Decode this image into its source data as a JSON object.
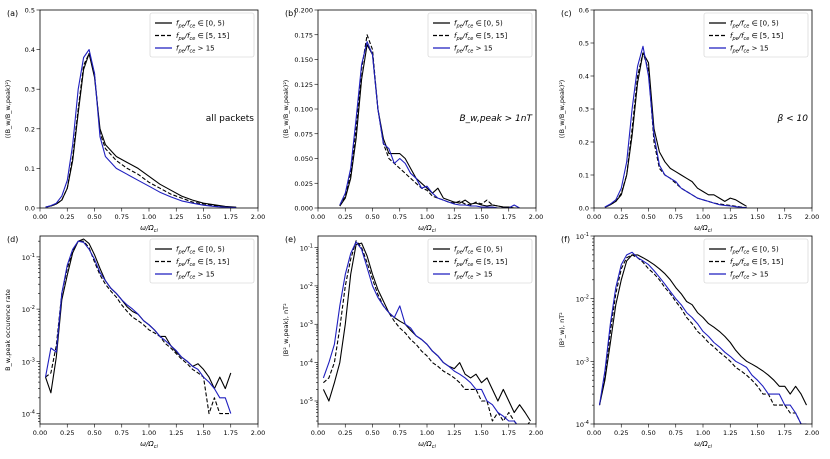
{
  "figure": {
    "xlabel": "ω/Ω",
    "xlabel_sub": "ci",
    "legend_entries": [
      {
        "main": "f",
        "sub": "pe",
        "mid": "/f",
        "sub2": "ce",
        "tail": " ∈ [0, 5)",
        "color": "#000000",
        "dash": "solid"
      },
      {
        "main": "f",
        "sub": "pe",
        "mid": "/f",
        "sub2": "ce",
        "tail": " ∈ [5, 15]",
        "color": "#000000",
        "dash": "dashed"
      },
      {
        "main": "f",
        "sub": "pe",
        "mid": "/f",
        "sub2": "ce",
        "tail": " > 15",
        "color": "#1f1fbf",
        "dash": "solid"
      }
    ]
  },
  "chart_data": [
    {
      "panel": "(a)",
      "type": "line",
      "scale": "linear",
      "ylabel": "⟨(B_w/B_w,peak)²⟩",
      "annotation": "all packets",
      "xlim": [
        0,
        2
      ],
      "ylim": [
        0,
        0.5
      ],
      "yticks": [
        "0.0",
        "0.1",
        "0.2",
        "0.3",
        "0.4",
        "0.5"
      ],
      "xticks": [
        "0.00",
        "0.25",
        "0.50",
        "0.75",
        "1.00",
        "1.25",
        "1.50",
        "1.75",
        "2.00"
      ],
      "x": [
        0.05,
        0.1,
        0.15,
        0.2,
        0.25,
        0.3,
        0.35,
        0.4,
        0.45,
        0.5,
        0.55,
        0.6,
        0.7,
        0.8,
        0.9,
        1.0,
        1.1,
        1.2,
        1.3,
        1.4,
        1.5,
        1.6,
        1.7,
        1.8
      ],
      "series": [
        {
          "values": [
            0.002,
            0.005,
            0.01,
            0.02,
            0.05,
            0.12,
            0.24,
            0.35,
            0.39,
            0.33,
            0.2,
            0.16,
            0.13,
            0.115,
            0.1,
            0.08,
            0.06,
            0.045,
            0.03,
            0.02,
            0.012,
            0.008,
            0.004,
            0.002
          ]
        },
        {
          "values": [
            0.002,
            0.005,
            0.01,
            0.02,
            0.05,
            0.13,
            0.25,
            0.36,
            0.39,
            0.34,
            0.19,
            0.15,
            0.12,
            0.1,
            0.085,
            0.065,
            0.05,
            0.035,
            0.025,
            0.015,
            0.01,
            0.006,
            0.003,
            0.001
          ]
        },
        {
          "values": [
            0.002,
            0.006,
            0.012,
            0.03,
            0.07,
            0.16,
            0.3,
            0.38,
            0.4,
            0.34,
            0.18,
            0.13,
            0.1,
            0.085,
            0.07,
            0.055,
            0.04,
            0.028,
            0.018,
            0.012,
            0.007,
            0.004,
            0.002,
            0.001
          ]
        }
      ]
    },
    {
      "panel": "(b)",
      "type": "line",
      "scale": "linear",
      "ylabel": "⟨(B_w/B_w,peak)²⟩",
      "annotation": "B_w,peak > 1nT",
      "xlim": [
        0,
        2
      ],
      "ylim": [
        0,
        0.2
      ],
      "yticks": [
        "0.000",
        "0.025",
        "0.050",
        "0.075",
        "0.100",
        "0.125",
        "0.150",
        "0.175",
        "0.200"
      ],
      "xticks": [
        "0.00",
        "0.25",
        "0.50",
        "0.75",
        "1.00",
        "1.25",
        "1.50",
        "1.75",
        "2.00"
      ],
      "x": [
        0.2,
        0.25,
        0.3,
        0.35,
        0.4,
        0.45,
        0.5,
        0.55,
        0.6,
        0.65,
        0.7,
        0.75,
        0.8,
        0.85,
        0.9,
        0.95,
        1.0,
        1.05,
        1.1,
        1.15,
        1.2,
        1.25,
        1.3,
        1.35,
        1.4,
        1.45,
        1.5,
        1.55,
        1.6,
        1.65,
        1.7,
        1.75,
        1.8,
        1.85
      ],
      "series": [
        {
          "values": [
            0.002,
            0.01,
            0.03,
            0.07,
            0.13,
            0.165,
            0.155,
            0.1,
            0.07,
            0.055,
            0.055,
            0.055,
            0.05,
            0.04,
            0.03,
            0.025,
            0.02,
            0.015,
            0.02,
            0.01,
            0.008,
            0.006,
            0.005,
            0.008,
            0.004,
            0.005,
            0.003,
            0.002,
            0.003,
            0.002,
            0.001,
            0.001,
            0.0,
            0.0
          ]
        },
        {
          "values": [
            0.002,
            0.012,
            0.035,
            0.08,
            0.14,
            0.175,
            0.16,
            0.1,
            0.065,
            0.05,
            0.045,
            0.04,
            0.035,
            0.03,
            0.025,
            0.02,
            0.018,
            0.012,
            0.01,
            0.008,
            0.006,
            0.005,
            0.007,
            0.004,
            0.003,
            0.006,
            0.004,
            0.008,
            0.003,
            0.002,
            0.001,
            0.0,
            0.0,
            0.0
          ]
        },
        {
          "values": [
            0.003,
            0.015,
            0.04,
            0.09,
            0.145,
            0.168,
            0.155,
            0.1,
            0.065,
            0.06,
            0.045,
            0.05,
            0.045,
            0.035,
            0.03,
            0.02,
            0.022,
            0.015,
            0.01,
            0.008,
            0.006,
            0.004,
            0.003,
            0.003,
            0.002,
            0.002,
            0.001,
            0.001,
            0.001,
            0.0,
            0.0,
            0.0,
            0.003,
            0.0
          ]
        }
      ]
    },
    {
      "panel": "(c)",
      "type": "line",
      "scale": "linear",
      "ylabel": "⟨(B_w/B_w,peak)²⟩",
      "annotation": "β < 10",
      "xlim": [
        0,
        2
      ],
      "ylim": [
        0,
        0.6
      ],
      "yticks": [
        "0.0",
        "0.1",
        "0.2",
        "0.3",
        "0.4",
        "0.5",
        "0.6"
      ],
      "xticks": [
        "0.00",
        "0.25",
        "0.50",
        "0.75",
        "1.00",
        "1.25",
        "1.50",
        "1.75",
        "2.00"
      ],
      "x": [
        0.1,
        0.15,
        0.2,
        0.25,
        0.3,
        0.35,
        0.4,
        0.45,
        0.5,
        0.55,
        0.6,
        0.65,
        0.7,
        0.75,
        0.8,
        0.85,
        0.9,
        0.95,
        1.0,
        1.05,
        1.1,
        1.15,
        1.2,
        1.25,
        1.3,
        1.35,
        1.4
      ],
      "series": [
        {
          "values": [
            0.002,
            0.01,
            0.02,
            0.04,
            0.1,
            0.22,
            0.38,
            0.47,
            0.44,
            0.24,
            0.17,
            0.14,
            0.12,
            0.11,
            0.1,
            0.09,
            0.08,
            0.06,
            0.05,
            0.04,
            0.04,
            0.03,
            0.02,
            0.03,
            0.025,
            0.015,
            0.005
          ]
        },
        {
          "values": [
            0.002,
            0.01,
            0.02,
            0.045,
            0.1,
            0.24,
            0.4,
            0.47,
            0.42,
            0.2,
            0.12,
            0.1,
            0.09,
            0.075,
            0.06,
            0.05,
            0.04,
            0.03,
            0.025,
            0.02,
            0.015,
            0.012,
            0.01,
            0.008,
            0.005,
            0.003,
            0.001
          ]
        },
        {
          "values": [
            0.003,
            0.012,
            0.025,
            0.06,
            0.14,
            0.3,
            0.43,
            0.49,
            0.4,
            0.22,
            0.13,
            0.1,
            0.09,
            0.08,
            0.06,
            0.05,
            0.04,
            0.03,
            0.025,
            0.02,
            0.015,
            0.01,
            0.008,
            0.006,
            0.004,
            0.002,
            0.001
          ]
        }
      ]
    },
    {
      "panel": "(d)",
      "type": "line",
      "scale": "log",
      "ylabel": "B_w,peak occurence rate",
      "annotation": "",
      "xlim": [
        0,
        2
      ],
      "ylim_exp": [
        -4.2,
        -0.6
      ],
      "yticks_exp": [
        -4,
        -3,
        -2,
        -1
      ],
      "xticks": [
        "0.00",
        "0.25",
        "0.50",
        "0.75",
        "1.00",
        "1.25",
        "1.50",
        "1.75",
        "2.00"
      ],
      "x": [
        0.05,
        0.1,
        0.15,
        0.2,
        0.25,
        0.3,
        0.35,
        0.4,
        0.45,
        0.5,
        0.55,
        0.6,
        0.65,
        0.7,
        0.75,
        0.8,
        0.85,
        0.9,
        0.95,
        1.0,
        1.05,
        1.1,
        1.15,
        1.2,
        1.25,
        1.3,
        1.35,
        1.4,
        1.45,
        1.5,
        1.55,
        1.6,
        1.65,
        1.7,
        1.75
      ],
      "series": [
        {
          "values": [
            0.0005,
            0.00025,
            0.0012,
            0.015,
            0.045,
            0.12,
            0.2,
            0.22,
            0.18,
            0.11,
            0.06,
            0.035,
            0.025,
            0.02,
            0.015,
            0.011,
            0.009,
            0.008,
            0.006,
            0.005,
            0.004,
            0.003,
            0.003,
            0.002,
            0.0015,
            0.0012,
            0.001,
            0.0008,
            0.0009,
            0.0007,
            0.0005,
            0.0003,
            0.0005,
            0.0003,
            0.0006
          ]
        },
        {
          "values": [
            0.0005,
            0.0006,
            0.002,
            0.02,
            0.06,
            0.13,
            0.2,
            0.2,
            0.15,
            0.08,
            0.045,
            0.03,
            0.022,
            0.017,
            0.012,
            0.009,
            0.007,
            0.006,
            0.005,
            0.004,
            0.0035,
            0.003,
            0.0022,
            0.0018,
            0.0014,
            0.0011,
            0.0009,
            0.0007,
            0.0006,
            0.0005,
            0.0001,
            0.0002,
            0.0001,
            0.0001,
            0.0001
          ]
        },
        {
          "values": [
            0.0005,
            0.0018,
            0.0015,
            0.02,
            0.07,
            0.14,
            0.2,
            0.19,
            0.14,
            0.09,
            0.05,
            0.035,
            0.025,
            0.02,
            0.015,
            0.012,
            0.01,
            0.008,
            0.006,
            0.005,
            0.004,
            0.003,
            0.0025,
            0.002,
            0.0016,
            0.0012,
            0.001,
            0.0008,
            0.0007,
            0.0005,
            0.0004,
            0.0003,
            0.0002,
            0.0002,
            0.0001
          ]
        }
      ]
    },
    {
      "panel": "(e)",
      "type": "line",
      "scale": "log",
      "ylabel": "⟨B²_w,peak⟩, nT²",
      "annotation": "",
      "xlim": [
        0,
        2
      ],
      "ylim_exp": [
        -5.6,
        -0.7
      ],
      "yticks_exp": [
        -5,
        -4,
        -3,
        -2,
        -1
      ],
      "xticks": [
        "0.00",
        "0.25",
        "0.50",
        "0.75",
        "1.00",
        "1.25",
        "1.50",
        "1.75",
        "2.00"
      ],
      "x": [
        0.05,
        0.1,
        0.15,
        0.2,
        0.25,
        0.3,
        0.35,
        0.4,
        0.45,
        0.5,
        0.55,
        0.6,
        0.65,
        0.7,
        0.75,
        0.8,
        0.85,
        0.9,
        0.95,
        1.0,
        1.05,
        1.1,
        1.15,
        1.2,
        1.25,
        1.3,
        1.35,
        1.4,
        1.45,
        1.5,
        1.55,
        1.6,
        1.65,
        1.7,
        1.75,
        1.8,
        1.85,
        1.9,
        1.95
      ],
      "series": [
        {
          "values": [
            2e-05,
            1e-05,
            3e-05,
            0.0001,
            0.001,
            0.02,
            0.12,
            0.13,
            0.06,
            0.02,
            0.008,
            0.004,
            0.002,
            0.0015,
            0.0012,
            0.001,
            0.0007,
            0.0005,
            0.0004,
            0.0003,
            0.0002,
            0.00015,
            0.0001,
            8e-05,
            7e-05,
            0.0001,
            5e-05,
            4e-05,
            5e-05,
            3e-05,
            4e-05,
            2e-05,
            1e-05,
            2e-05,
            1e-05,
            5e-06,
            8e-06,
            5e-06,
            3e-06
          ]
        },
        {
          "values": [
            3e-05,
            4e-05,
            0.0001,
            0.0008,
            0.01,
            0.05,
            0.15,
            0.1,
            0.04,
            0.015,
            0.006,
            0.003,
            0.002,
            0.0012,
            0.0008,
            0.0006,
            0.0004,
            0.0003,
            0.0002,
            0.00015,
            0.0001,
            8e-05,
            6e-05,
            5e-05,
            4e-05,
            3e-05,
            2e-05,
            2e-05,
            2e-05,
            1e-05,
            1e-05,
            3e-06,
            5e-06,
            3e-06,
            5e-06,
            3e-06,
            2e-06,
            2e-06,
            3e-06
          ]
        },
        {
          "values": [
            4e-05,
            0.0001,
            0.0003,
            0.003,
            0.02,
            0.07,
            0.14,
            0.09,
            0.03,
            0.01,
            0.005,
            0.003,
            0.002,
            0.0015,
            0.003,
            0.001,
            0.0008,
            0.0005,
            0.0004,
            0.0003,
            0.0002,
            0.00015,
            0.0001,
            8e-05,
            6e-05,
            5e-05,
            4e-05,
            3e-05,
            2e-05,
            2e-05,
            1e-05,
            8e-06,
            5e-06,
            4e-06,
            3e-06,
            3e-06,
            2e-06,
            2e-06,
            2e-06
          ]
        }
      ]
    },
    {
      "panel": "(f)",
      "type": "line",
      "scale": "log",
      "ylabel": "⟨B²_w⟩, nT²",
      "annotation": "",
      "xlim": [
        0,
        2
      ],
      "ylim_exp": [
        -4,
        -1
      ],
      "yticks_exp": [
        -4,
        -3,
        -2,
        -1
      ],
      "xticks": [
        "0.00",
        "0.25",
        "0.50",
        "0.75",
        "1.00",
        "1.25",
        "1.50",
        "1.75",
        "2.00"
      ],
      "x": [
        0.05,
        0.1,
        0.15,
        0.2,
        0.25,
        0.3,
        0.35,
        0.4,
        0.45,
        0.5,
        0.55,
        0.6,
        0.65,
        0.7,
        0.75,
        0.8,
        0.85,
        0.9,
        0.95,
        1.0,
        1.05,
        1.1,
        1.15,
        1.2,
        1.25,
        1.3,
        1.35,
        1.4,
        1.45,
        1.5,
        1.55,
        1.6,
        1.65,
        1.7,
        1.75,
        1.8,
        1.85,
        1.9,
        1.95
      ],
      "series": [
        {
          "values": [
            0.0002,
            0.0005,
            0.002,
            0.008,
            0.02,
            0.04,
            0.05,
            0.05,
            0.045,
            0.04,
            0.035,
            0.03,
            0.025,
            0.02,
            0.015,
            0.012,
            0.009,
            0.008,
            0.006,
            0.005,
            0.004,
            0.0035,
            0.003,
            0.0025,
            0.002,
            0.0015,
            0.0012,
            0.001,
            0.0009,
            0.0008,
            0.0007,
            0.0006,
            0.0005,
            0.0004,
            0.0004,
            0.0003,
            0.0004,
            0.0003,
            0.0002
          ]
        },
        {
          "values": [
            0.0002,
            0.0006,
            0.003,
            0.012,
            0.03,
            0.045,
            0.05,
            0.045,
            0.038,
            0.03,
            0.025,
            0.02,
            0.015,
            0.012,
            0.009,
            0.007,
            0.005,
            0.004,
            0.003,
            0.0025,
            0.002,
            0.0017,
            0.0014,
            0.0012,
            0.001,
            0.0008,
            0.0007,
            0.0006,
            0.0005,
            0.0004,
            0.0003,
            0.0003,
            0.0002,
            0.0002,
            0.0002,
            0.00015,
            0.00015,
            0.0001,
            0.0001
          ]
        },
        {
          "values": [
            0.0002,
            0.0007,
            0.004,
            0.015,
            0.035,
            0.05,
            0.055,
            0.045,
            0.04,
            0.035,
            0.028,
            0.022,
            0.017,
            0.013,
            0.01,
            0.008,
            0.006,
            0.005,
            0.004,
            0.003,
            0.0025,
            0.002,
            0.0017,
            0.0014,
            0.0012,
            0.001,
            0.0009,
            0.0008,
            0.0006,
            0.0005,
            0.0004,
            0.0003,
            0.0003,
            0.0003,
            0.0002,
            0.0002,
            0.00015,
            0.0001,
            0.0001
          ]
        }
      ]
    }
  ]
}
